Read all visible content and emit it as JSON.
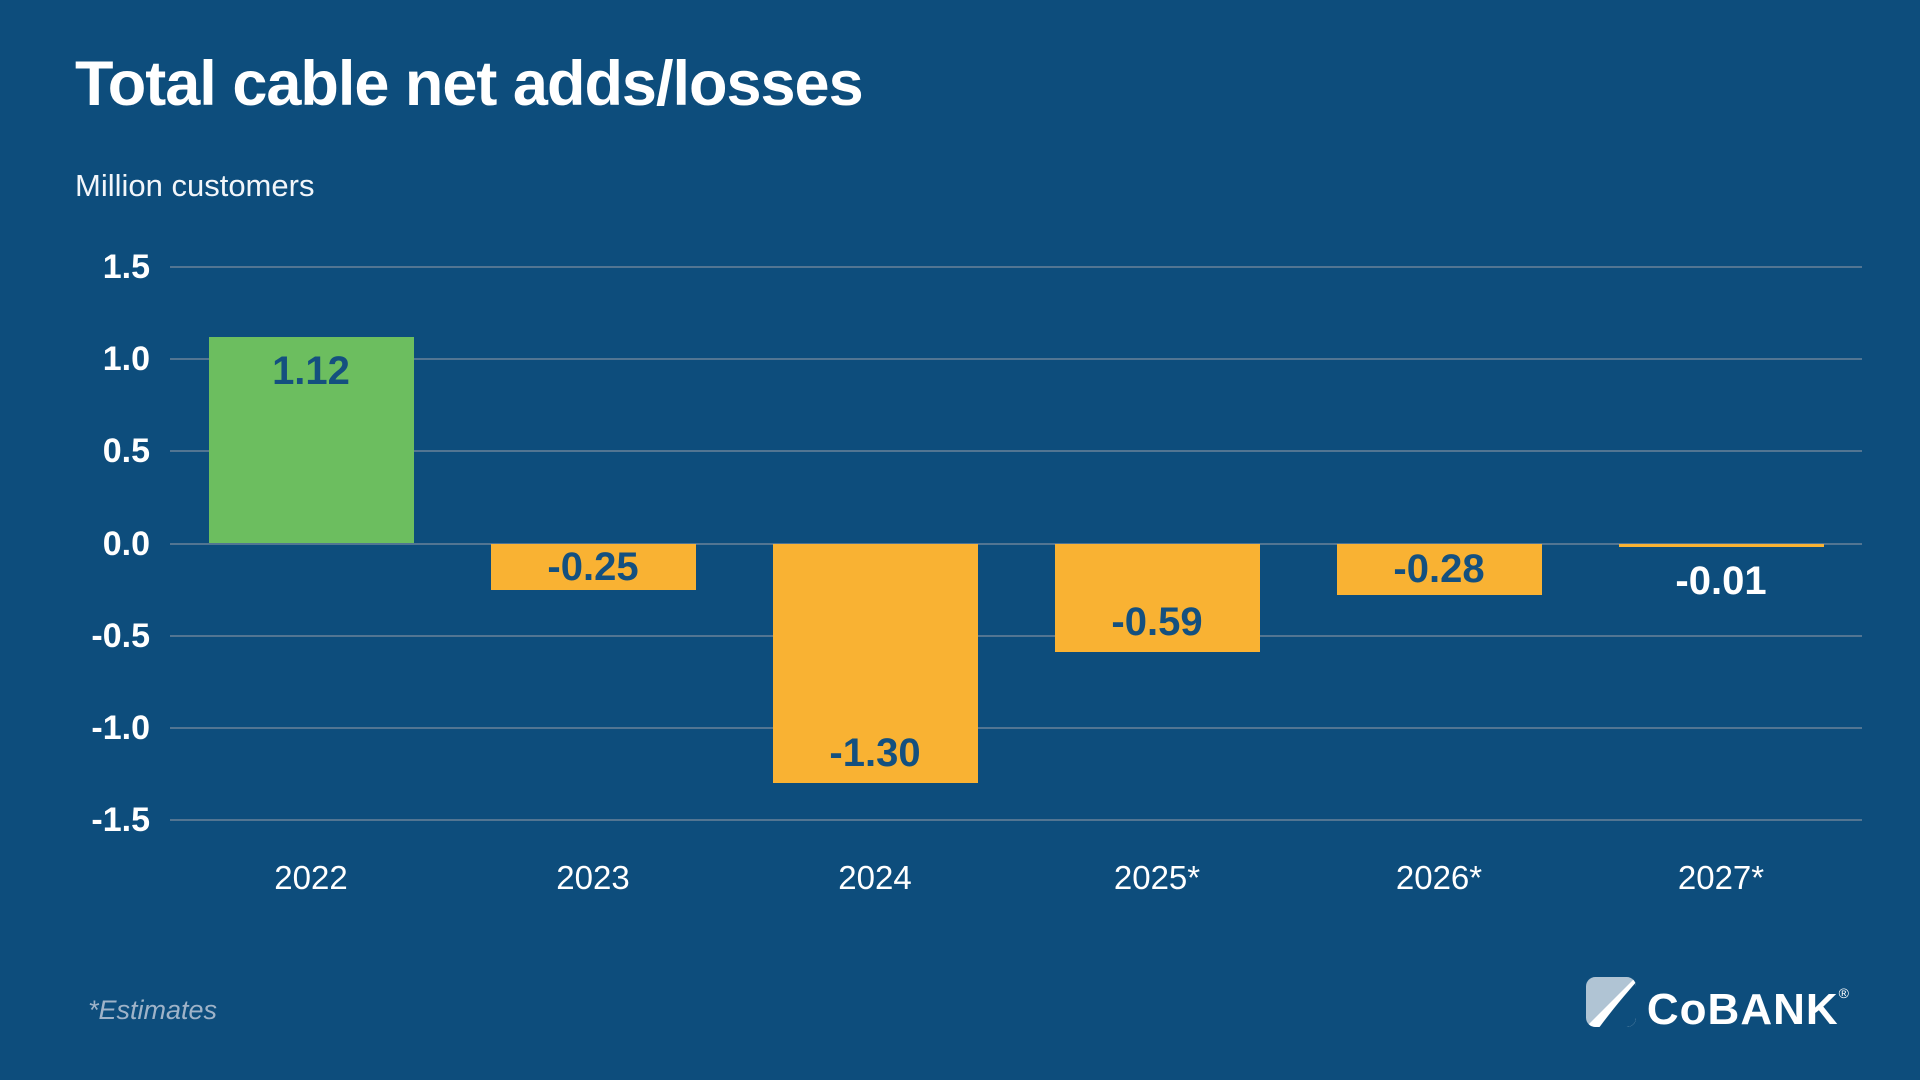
{
  "header": {
    "title": "Total cable net adds/losses",
    "subtitle": "Million customers"
  },
  "footnote": "*Estimates",
  "logo": {
    "text": "CoBANK",
    "registered": "®"
  },
  "colors": {
    "background": "#0D4D7C",
    "positive_bar_green": "#6CBE5F",
    "negative_bar_orange": "#F9B233",
    "value_label_navy": "#14507F",
    "value_label_outside_white": "#FFFFFF",
    "gridline": "#5F7D96",
    "axis_text": "#FFFFFF",
    "footnote_text": "#9FB3C8",
    "logo_light_blue": "#B0C4D4",
    "logo_white": "#FFFFFF"
  },
  "chart_data": {
    "type": "bar",
    "title": "Total cable net adds/losses",
    "ylabel": "Million customers",
    "categories": [
      "2022",
      "2023",
      "2024",
      "2025*",
      "2026*",
      "2027*"
    ],
    "values": [
      1.12,
      -0.25,
      -1.3,
      -0.59,
      -0.28,
      -0.01
    ],
    "value_labels": [
      "1.12",
      "-0.25",
      "-1.30",
      "-0.59",
      "-0.28",
      "-0.01"
    ],
    "ylim": [
      -1.5,
      1.5
    ],
    "ytick_values": [
      1.5,
      1.0,
      0.5,
      0.0,
      -0.5,
      -1.0,
      -1.5
    ],
    "ytick_labels": [
      "1.5",
      "1.0",
      "0.5",
      "0.0",
      "-0.5",
      "-1.0",
      "-1.5"
    ],
    "grid": true,
    "legend": false,
    "annotation": "*Estimates"
  }
}
